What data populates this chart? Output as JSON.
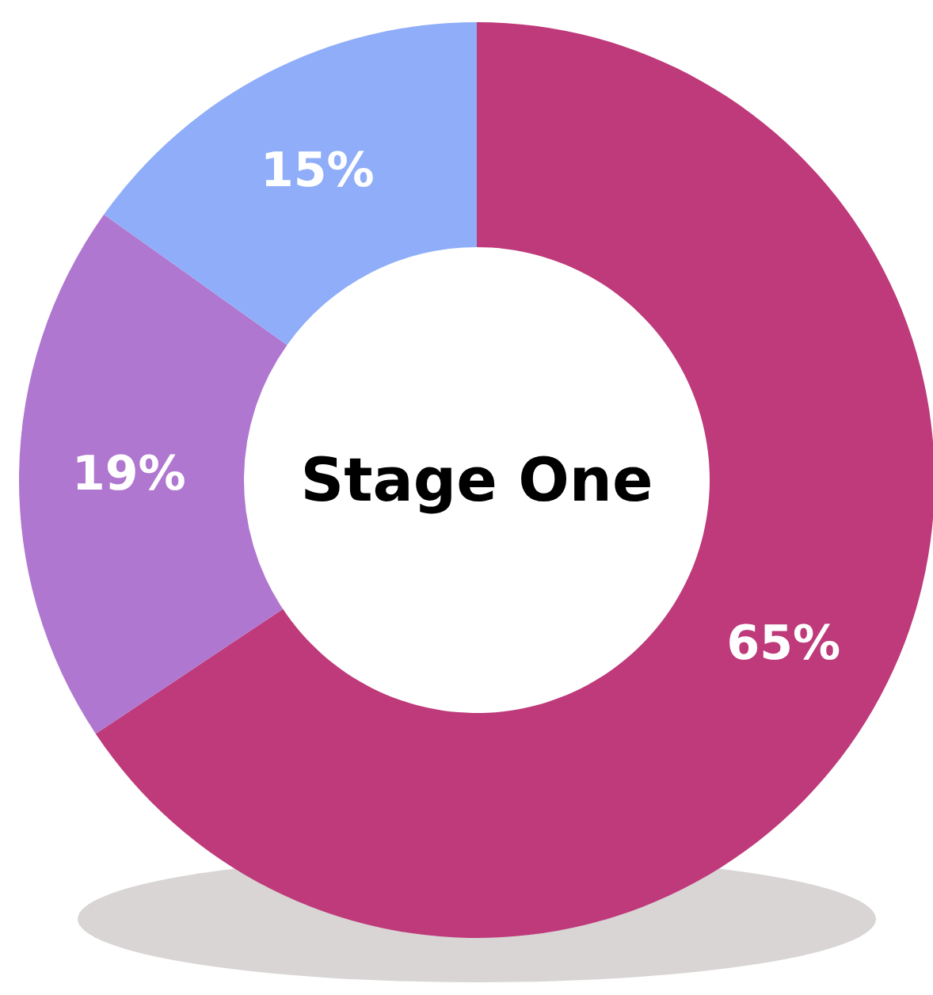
{
  "chart_data": {
    "type": "donut",
    "title": "Stage One",
    "categories": [
      null,
      null,
      null
    ],
    "values": [
      65,
      19,
      15
    ],
    "colors": [
      "#be3a7a",
      "#b077d0",
      "#8fadf8"
    ],
    "value_labels": [
      "65%",
      "19%",
      "15%"
    ]
  }
}
